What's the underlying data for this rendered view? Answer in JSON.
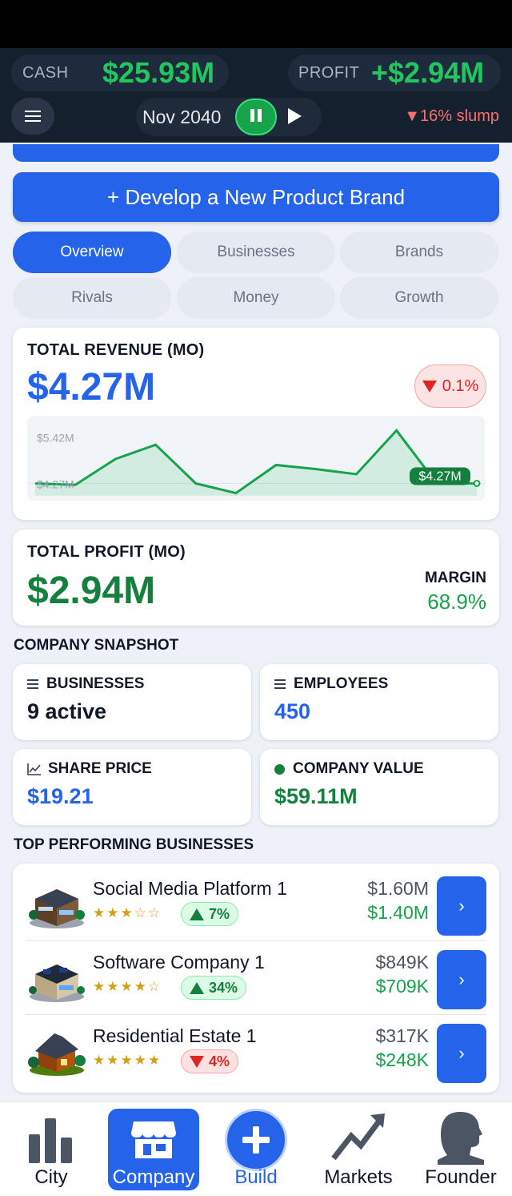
{
  "header": {
    "cash_label": "CASH",
    "cash_value": "$25.93M",
    "profit_label": "PROFIT",
    "profit_value": "+$2.94M",
    "date": "Nov 2040",
    "slump": "▼16% slump",
    "icons": [
      "menu-icon",
      "pause-icon",
      "play-icon"
    ]
  },
  "develop_button": "+  Develop a New Product Brand",
  "tabs": [
    {
      "label": "Overview",
      "active": true
    },
    {
      "label": "Businesses",
      "active": false
    },
    {
      "label": "Brands",
      "active": false
    },
    {
      "label": "Rivals",
      "active": false
    },
    {
      "label": "Money",
      "active": false
    },
    {
      "label": "Growth",
      "active": false
    }
  ],
  "revenue": {
    "title": "TOTAL REVENUE (MO)",
    "value": "$4.27M",
    "delta": "0.1%",
    "chart_data": {
      "type": "area",
      "series": [
        {
          "values": [
            4.27,
            4.24,
            4.8,
            5.11,
            4.27,
            4.06,
            4.67,
            4.58,
            4.47,
            5.42,
            4.27,
            4.27
          ]
        }
      ],
      "tick_labels": [
        "$5.42M",
        "$4.27M"
      ],
      "end_label": "$4.27M",
      "ylim": [
        4.0,
        5.6
      ],
      "color": "#16a34a"
    }
  },
  "profit": {
    "title": "TOTAL PROFIT (MO)",
    "value": "$2.94M",
    "margin_label": "MARGIN",
    "margin_value": "68.9%"
  },
  "snapshot": {
    "heading": "COMPANY SNAPSHOT",
    "businesses_label": "BUSINESSES",
    "businesses_value": "9 active",
    "employees_label": "EMPLOYEES",
    "employees_value": "450",
    "share_label": "SHARE PRICE",
    "share_value": "$19.21",
    "value_label": "COMPANY VALUE",
    "value_value": "$59.11M"
  },
  "top": {
    "heading": "TOP PERFORMING BUSINESSES",
    "items": [
      {
        "name": "Social Media Platform 1",
        "stars": "★★★☆☆",
        "rating": 3,
        "change": "7%",
        "direction": "up",
        "revenue": "$1.60M",
        "profit": "$1.40M",
        "icon": "office-building-icon"
      },
      {
        "name": "Software Company 1",
        "stars": "★★★★☆",
        "rating": 4,
        "change": "34%",
        "direction": "up",
        "revenue": "$849K",
        "profit": "$709K",
        "icon": "tech-building-icon"
      },
      {
        "name": "Residential Estate 1",
        "stars": "★★★★★",
        "rating": 5,
        "change": "4%",
        "direction": "down",
        "revenue": "$317K",
        "profit": "$248K",
        "icon": "house-icon"
      }
    ],
    "go_label": "›"
  },
  "nav": [
    {
      "label": "City",
      "icon": "bar-chart-icon"
    },
    {
      "label": "Company",
      "icon": "store-icon",
      "active": true
    },
    {
      "label": "Build",
      "icon": "plus-icon"
    },
    {
      "label": "Markets",
      "icon": "trend-up-icon"
    },
    {
      "label": "Founder",
      "icon": "person-head-icon"
    }
  ]
}
